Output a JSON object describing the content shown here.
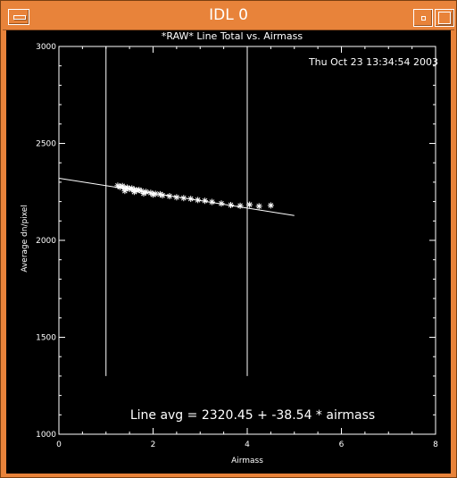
{
  "window": {
    "title": "IDL 0"
  },
  "chart_data": {
    "type": "scatter",
    "title": "*RAW* Line Total vs. Airmass",
    "timestamp": "Thu Oct 23 13:34:54 2003",
    "xlabel": "Airmass",
    "ylabel": "Average dn/pixel",
    "xlim": [
      0,
      8
    ],
    "ylim": [
      1000,
      3000
    ],
    "x_ticks": [
      "0",
      "2",
      "4",
      "6",
      "8"
    ],
    "y_ticks": [
      "1000",
      "1500",
      "2000",
      "2500",
      "3000"
    ],
    "marker": "asterisk",
    "points": [
      [
        1.25,
        2282
      ],
      [
        1.3,
        2275
      ],
      [
        1.35,
        2280
      ],
      [
        1.4,
        2270
      ],
      [
        1.45,
        2272
      ],
      [
        1.5,
        2265
      ],
      [
        1.55,
        2268
      ],
      [
        1.6,
        2262
      ],
      [
        1.65,
        2258
      ],
      [
        1.7,
        2260
      ],
      [
        1.75,
        2255
      ],
      [
        1.85,
        2250
      ],
      [
        1.95,
        2245
      ],
      [
        2.05,
        2240
      ],
      [
        2.15,
        2238
      ],
      [
        1.4,
        2255
      ],
      [
        1.6,
        2250
      ],
      [
        1.8,
        2242
      ],
      [
        2.0,
        2236
      ],
      [
        2.2,
        2232
      ],
      [
        2.35,
        2228
      ],
      [
        2.5,
        2222
      ],
      [
        2.65,
        2218
      ],
      [
        2.8,
        2214
      ],
      [
        2.95,
        2208
      ],
      [
        3.1,
        2204
      ],
      [
        3.25,
        2198
      ],
      [
        3.45,
        2190
      ],
      [
        3.65,
        2182
      ],
      [
        3.85,
        2178
      ],
      [
        4.05,
        2184
      ],
      [
        4.25,
        2176
      ],
      [
        4.5,
        2180
      ]
    ],
    "fit_line": {
      "intercept": 2320.45,
      "slope": -38.54,
      "x_range": [
        0,
        5
      ]
    },
    "vertical_lines": [
      {
        "x": 1.0,
        "y_range": [
          1300,
          3000
        ]
      },
      {
        "x": 4.0,
        "y_range": [
          1300,
          3000
        ]
      }
    ],
    "annotation": "Line avg = 2320.45 + -38.54 * airmass",
    "colors": {
      "background": "#000000",
      "foreground": "#ffffff",
      "frame": "#e8833a"
    }
  }
}
